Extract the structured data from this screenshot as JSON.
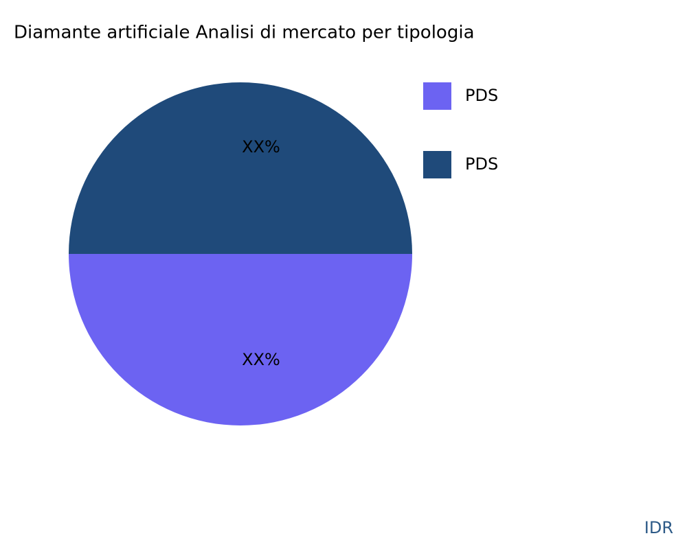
{
  "chart_data": {
    "type": "pie",
    "title": "Diamante artificiale Analisi di mercato per tipologia",
    "categories": [
      "PDS",
      "PDS"
    ],
    "values": [
      50,
      50
    ],
    "value_labels": [
      "XX%",
      "XX%"
    ],
    "colors": [
      "#6c63f2",
      "#1f4a7a"
    ],
    "legend": "top-right",
    "watermark": "IDR"
  }
}
